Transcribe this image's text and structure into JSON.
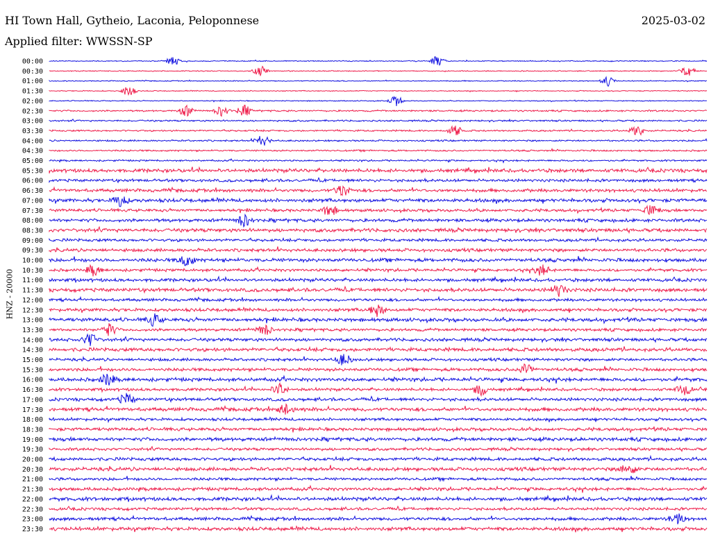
{
  "header": {
    "station": "HI Town Hall, Gytheio, Laconia, Peloponnese",
    "date": "2025-03-02",
    "filter": "Applied filter: WWSSN-SP"
  },
  "axis": {
    "channel_label": "HNZ - 20000"
  },
  "colors": {
    "trace_a": "#1010e0",
    "trace_b": "#ee1c4a"
  },
  "times": [
    "00:00",
    "00:30",
    "01:00",
    "01:30",
    "02:00",
    "02:30",
    "03:00",
    "03:30",
    "04:00",
    "04:30",
    "05:00",
    "05:30",
    "06:00",
    "06:30",
    "07:00",
    "07:30",
    "08:00",
    "08:30",
    "09:00",
    "09:30",
    "10:00",
    "10:30",
    "11:00",
    "11:30",
    "12:00",
    "12:30",
    "13:00",
    "13:30",
    "14:00",
    "14:30",
    "15:00",
    "15:30",
    "16:00",
    "16:30",
    "17:00",
    "17:30",
    "18:00",
    "18:30",
    "19:00",
    "19:30",
    "20:00",
    "20:30",
    "21:00",
    "21:30",
    "22:00",
    "22:30",
    "23:00",
    "23:30"
  ]
}
